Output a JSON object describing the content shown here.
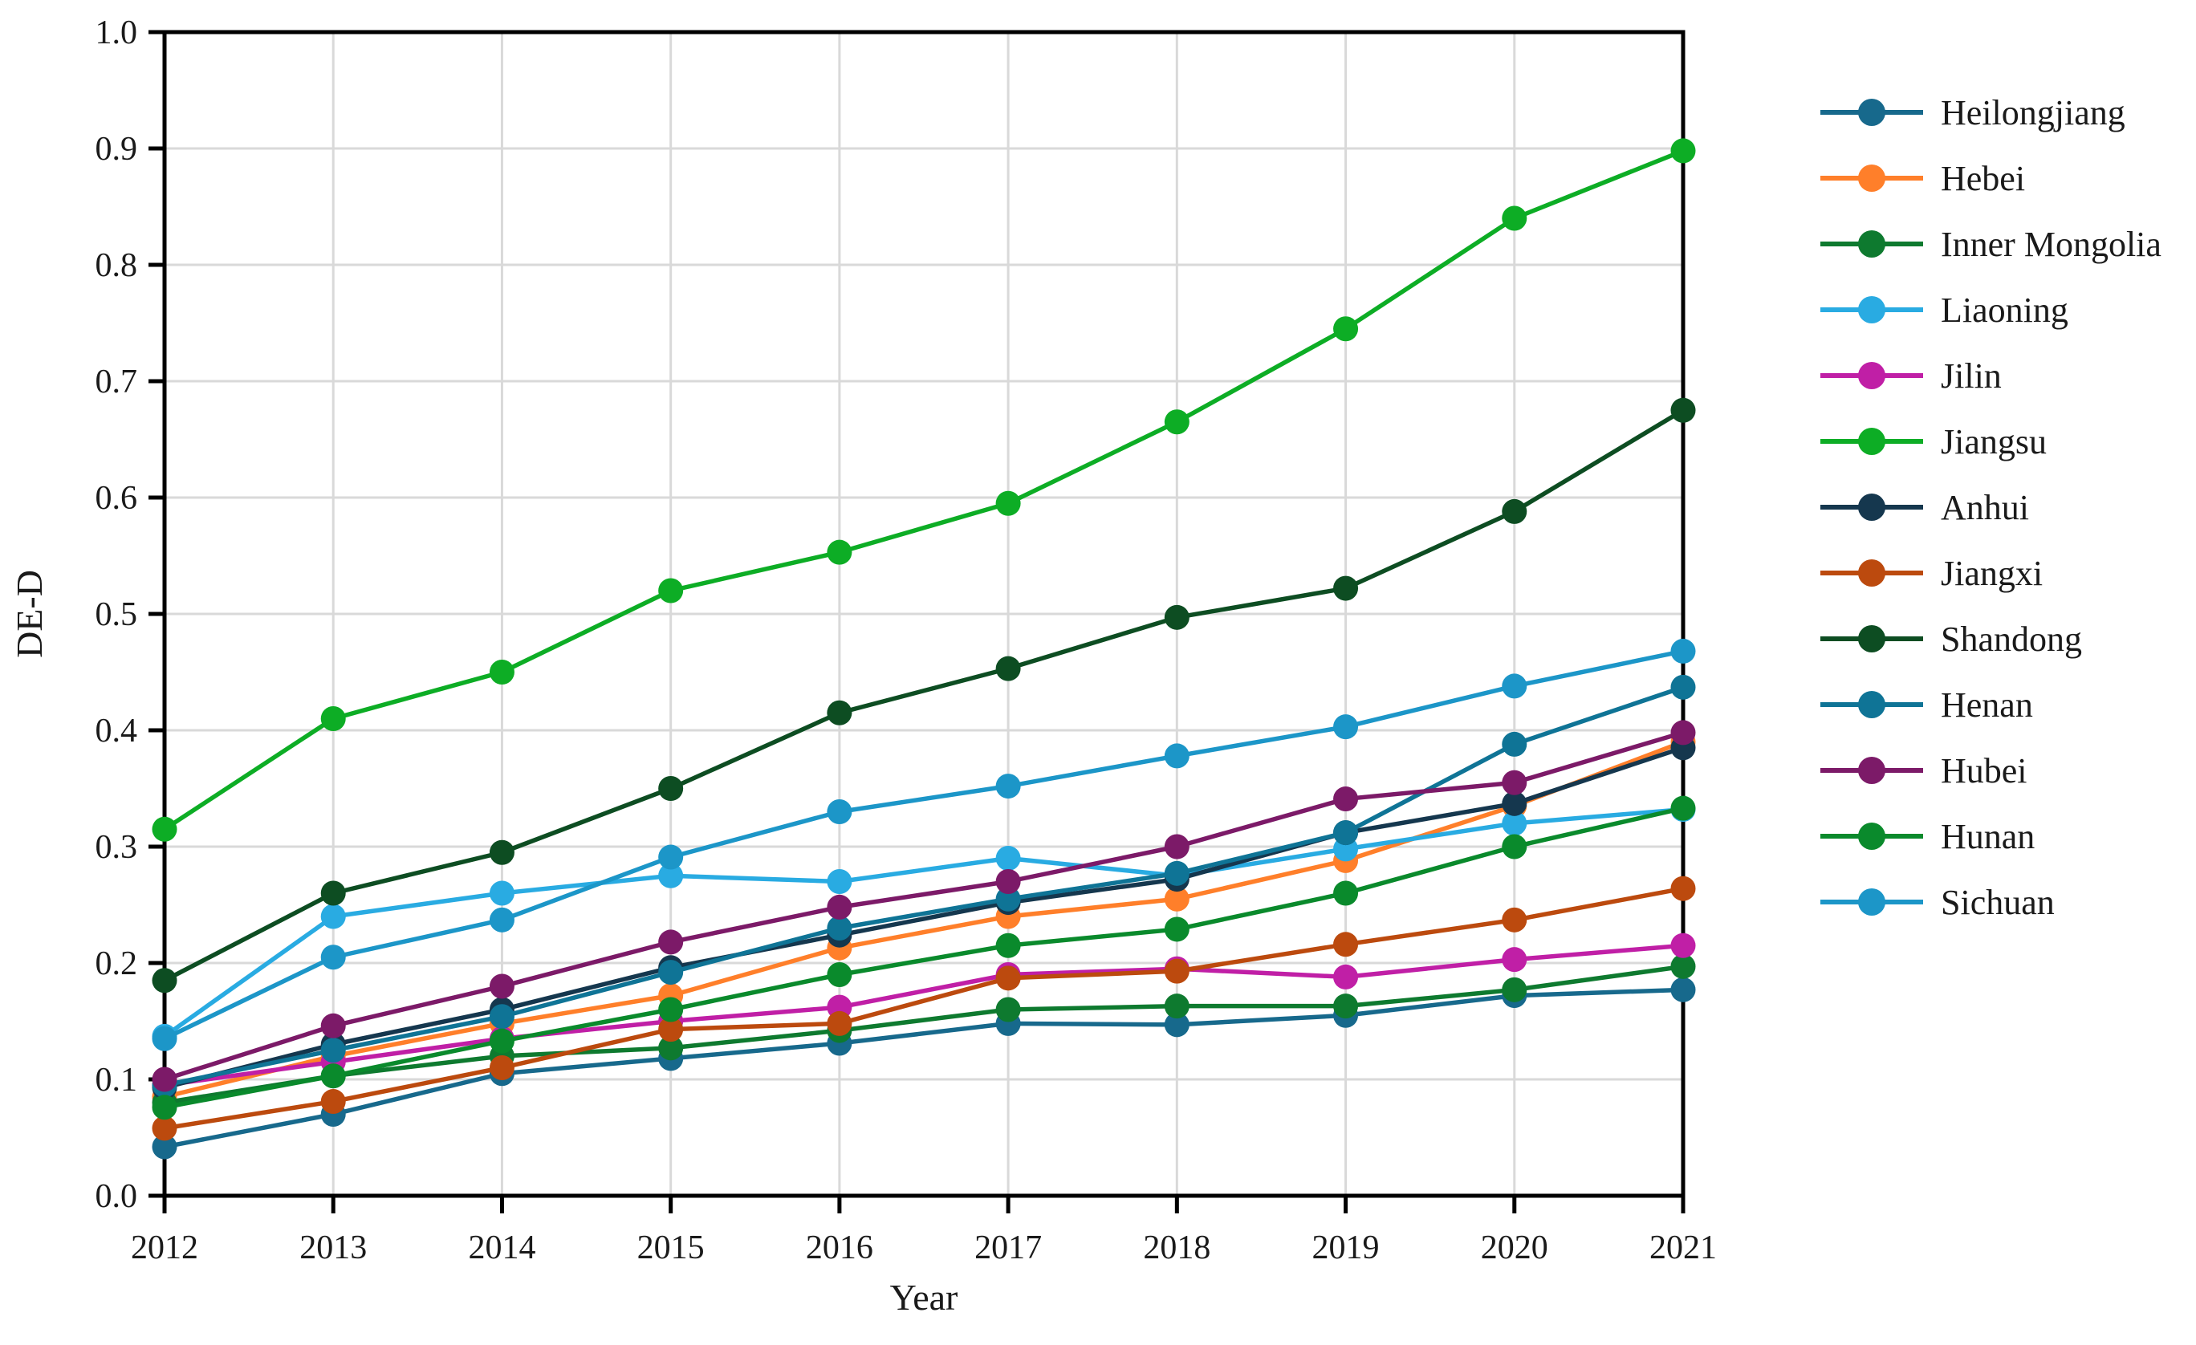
{
  "chart_data": {
    "type": "line",
    "title": "",
    "xlabel": "Year",
    "ylabel": "DE-D",
    "x": [
      2012,
      2013,
      2014,
      2015,
      2016,
      2017,
      2018,
      2019,
      2020,
      2021
    ],
    "ylim": [
      0.0,
      1.0
    ],
    "ytick_step": 0.1,
    "grid": true,
    "legend_position": "right",
    "marker": "circle",
    "series": [
      {
        "name": "Heilongjiang",
        "color": "#17698C",
        "values": [
          0.042,
          0.07,
          0.105,
          0.118,
          0.131,
          0.148,
          0.147,
          0.155,
          0.172,
          0.177
        ]
      },
      {
        "name": "Hebei",
        "color": "#FF7F2A",
        "values": [
          0.085,
          0.12,
          0.148,
          0.172,
          0.213,
          0.24,
          0.255,
          0.288,
          0.335,
          0.39
        ]
      },
      {
        "name": "Inner Mongolia",
        "color": "#0E7A2F",
        "values": [
          0.08,
          0.103,
          0.12,
          0.127,
          0.142,
          0.16,
          0.163,
          0.163,
          0.177,
          0.197
        ]
      },
      {
        "name": "Liaoning",
        "color": "#29ABE2",
        "values": [
          0.137,
          0.24,
          0.26,
          0.275,
          0.27,
          0.29,
          0.275,
          0.298,
          0.32,
          0.332
        ]
      },
      {
        "name": "Jilin",
        "color": "#C01FA6",
        "values": [
          0.095,
          0.115,
          0.135,
          0.15,
          0.162,
          0.19,
          0.195,
          0.188,
          0.203,
          0.215
        ]
      },
      {
        "name": "Jiangsu",
        "color": "#0DAD25",
        "values": [
          0.315,
          0.41,
          0.45,
          0.52,
          0.553,
          0.595,
          0.665,
          0.745,
          0.84,
          0.898
        ]
      },
      {
        "name": "Anhui",
        "color": "#15374E",
        "values": [
          0.093,
          0.13,
          0.16,
          0.196,
          0.224,
          0.252,
          0.272,
          0.312,
          0.337,
          0.385
        ]
      },
      {
        "name": "Jiangxi",
        "color": "#BC4A0E",
        "values": [
          0.058,
          0.081,
          0.11,
          0.143,
          0.148,
          0.187,
          0.193,
          0.216,
          0.237,
          0.264
        ]
      },
      {
        "name": "Shandong",
        "color": "#0D4D22",
        "values": [
          0.185,
          0.26,
          0.295,
          0.35,
          0.415,
          0.453,
          0.497,
          0.522,
          0.588,
          0.675
        ]
      },
      {
        "name": "Henan",
        "color": "#0F7496",
        "values": [
          0.095,
          0.125,
          0.154,
          0.192,
          0.23,
          0.255,
          0.277,
          0.312,
          0.388,
          0.437
        ]
      },
      {
        "name": "Hubei",
        "color": "#7C1A68",
        "values": [
          0.1,
          0.146,
          0.18,
          0.218,
          0.248,
          0.27,
          0.3,
          0.341,
          0.355,
          0.398
        ]
      },
      {
        "name": "Hunan",
        "color": "#0A8A2C",
        "values": [
          0.076,
          0.103,
          0.133,
          0.16,
          0.19,
          0.215,
          0.229,
          0.26,
          0.3,
          0.333
        ]
      },
      {
        "name": "Sichuan",
        "color": "#1C96C8",
        "values": [
          0.135,
          0.205,
          0.237,
          0.291,
          0.33,
          0.352,
          0.378,
          0.403,
          0.438,
          0.468
        ]
      }
    ],
    "axis_color": "#000000",
    "grid_color": "#d9d9d9"
  }
}
